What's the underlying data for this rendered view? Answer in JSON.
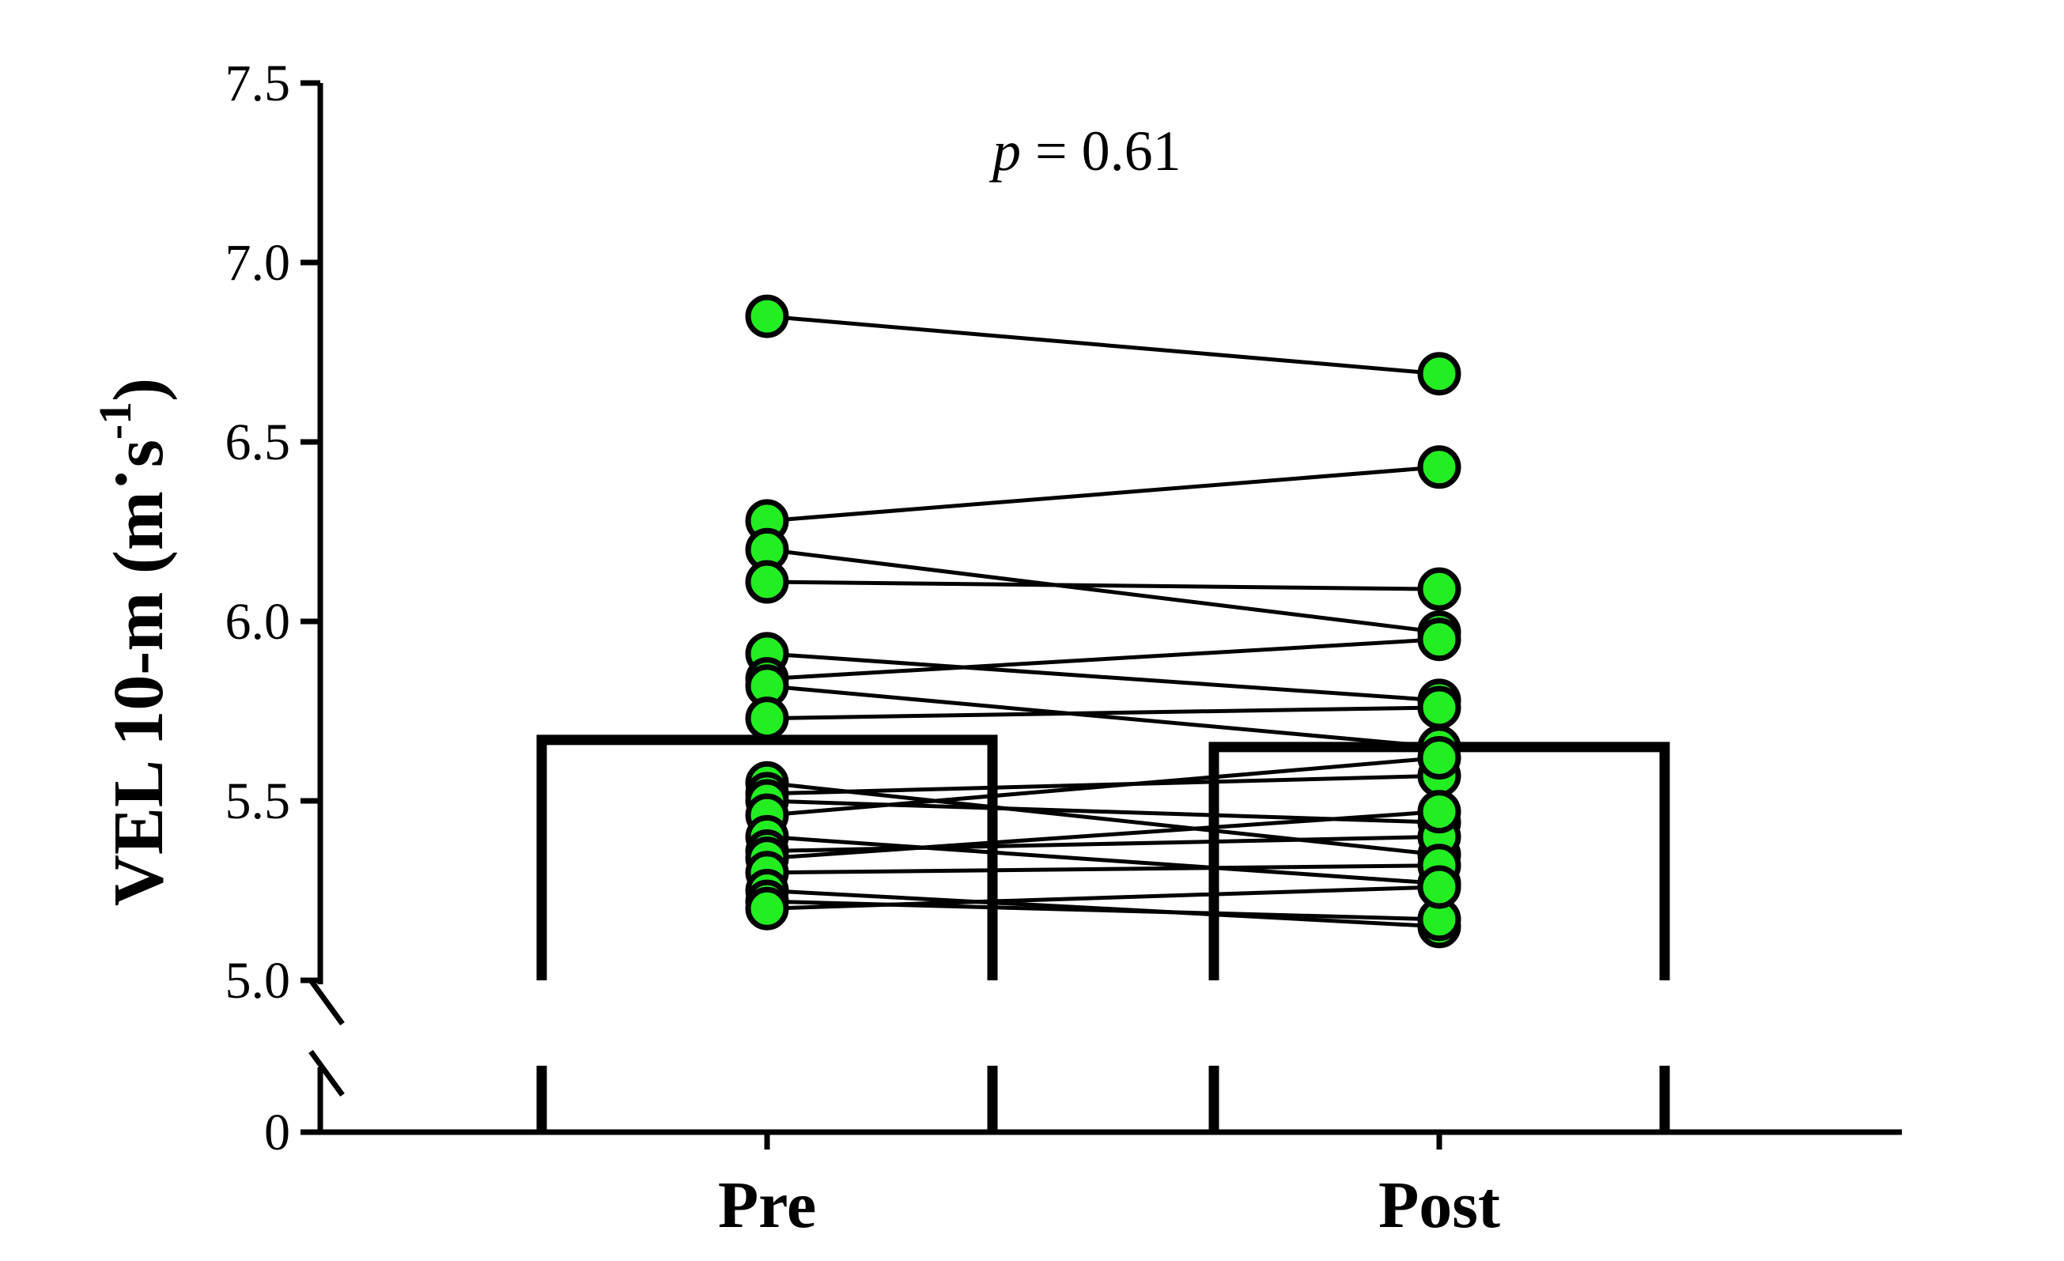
{
  "chart_data": {
    "type": "bar",
    "categories": [
      "Pre",
      "Post"
    ],
    "bar_values": [
      5.67,
      5.65
    ],
    "ylabel": {
      "main": "VEL 10-m (m",
      "dot": "·",
      "unit": "s",
      "exponent": "-1",
      "close": ")"
    },
    "annotation": {
      "italic": "p",
      "rest": " = 0.61"
    },
    "yticks": [
      "7.5",
      "7.0",
      "6.5",
      "6.0",
      "5.5",
      "5.0",
      "0"
    ],
    "ylim": [
      5.0,
      7.5
    ],
    "axis_break": [
      0,
      5.0
    ],
    "paired_points": {
      "pre": [
        6.85,
        6.28,
        6.2,
        6.11,
        5.91,
        5.84,
        5.82,
        5.73,
        5.55,
        5.52,
        5.5,
        5.46,
        5.4,
        5.36,
        5.34,
        5.3,
        5.25,
        5.22,
        5.2
      ],
      "post": [
        6.69,
        6.43,
        5.97,
        6.09,
        5.78,
        5.95,
        5.65,
        5.76,
        5.35,
        5.57,
        5.44,
        5.62,
        5.27,
        5.4,
        5.47,
        5.32,
        5.15,
        5.17,
        5.26
      ]
    },
    "colors": {
      "point_fill": "#22ee22",
      "stroke": "#000000",
      "bar_fill": "#ffffff"
    },
    "legend": "none",
    "grid": false
  }
}
